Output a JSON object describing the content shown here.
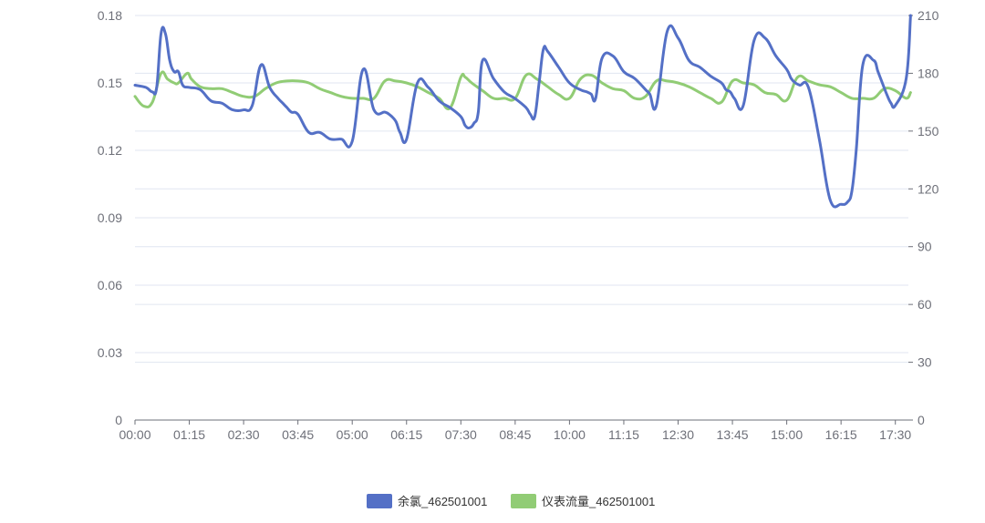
{
  "chart_data": {
    "type": "line",
    "title": "",
    "xlabel": "",
    "y_left": {
      "ticks": [
        "0",
        "0.03",
        "0.06",
        "0.09",
        "0.12",
        "0.15",
        "0.18"
      ],
      "min": 0,
      "max": 0.18
    },
    "y_right": {
      "ticks": [
        "0",
        "30",
        "60",
        "90",
        "120",
        "150",
        "180",
        "210"
      ],
      "min": 0,
      "max": 210
    },
    "x_ticks": [
      "00:00",
      "01:15",
      "02:30",
      "03:45",
      "05:00",
      "06:15",
      "07:30",
      "08:45",
      "10:00",
      "11:15",
      "12:30",
      "13:45",
      "15:00",
      "16:15",
      "17:30"
    ],
    "x_range_hours": [
      0,
      17.8
    ],
    "grid": true,
    "legend_position": "bottom-center",
    "series": [
      {
        "name": "余氯_462501001",
        "axis": "left",
        "color": "#5470c6",
        "x": [
          0.0,
          0.25,
          0.4,
          0.5,
          0.6,
          0.7,
          0.8,
          0.9,
          1.0,
          1.1,
          1.25,
          1.5,
          1.75,
          2.0,
          2.25,
          2.5,
          2.7,
          2.9,
          3.1,
          3.3,
          3.4,
          3.5,
          3.6,
          3.75,
          4.0,
          4.25,
          4.5,
          4.75,
          5.0,
          5.25,
          5.5,
          5.75,
          5.85,
          6.0,
          6.1,
          6.25,
          6.5,
          6.75,
          7.0,
          7.25,
          7.5,
          7.6,
          7.7,
          7.8,
          7.9,
          8.0,
          8.25,
          8.5,
          8.75,
          9.0,
          9.1,
          9.2,
          9.3,
          9.4,
          9.5,
          9.75,
          10.0,
          10.25,
          10.4,
          10.5,
          10.6,
          10.75,
          11.0,
          11.25,
          11.5,
          11.75,
          11.85,
          12.0,
          12.25,
          12.5,
          12.75,
          13.0,
          13.25,
          13.5,
          13.6,
          13.7,
          13.8,
          14.0,
          14.25,
          14.5,
          14.75,
          15.0,
          15.1,
          15.2,
          15.3,
          15.5,
          15.75,
          16.0,
          16.25,
          16.4,
          16.5,
          16.6,
          16.75,
          17.0,
          17.1,
          17.2,
          17.3,
          17.4,
          17.5,
          17.75,
          17.85
        ],
        "values": [
          0.149,
          0.148,
          0.146,
          0.148,
          0.172,
          0.172,
          0.16,
          0.155,
          0.155,
          0.149,
          0.148,
          0.147,
          0.142,
          0.141,
          0.138,
          0.138,
          0.14,
          0.158,
          0.148,
          0.143,
          0.141,
          0.139,
          0.137,
          0.136,
          0.128,
          0.128,
          0.125,
          0.125,
          0.124,
          0.156,
          0.138,
          0.137,
          0.136,
          0.133,
          0.128,
          0.125,
          0.15,
          0.148,
          0.142,
          0.139,
          0.135,
          0.131,
          0.13,
          0.132,
          0.137,
          0.16,
          0.152,
          0.146,
          0.143,
          0.139,
          0.136,
          0.135,
          0.15,
          0.165,
          0.164,
          0.157,
          0.15,
          0.147,
          0.146,
          0.145,
          0.143,
          0.161,
          0.162,
          0.155,
          0.152,
          0.147,
          0.145,
          0.14,
          0.173,
          0.17,
          0.16,
          0.157,
          0.153,
          0.15,
          0.147,
          0.146,
          0.143,
          0.14,
          0.169,
          0.17,
          0.162,
          0.156,
          0.152,
          0.15,
          0.149,
          0.148,
          0.125,
          0.098,
          0.096,
          0.097,
          0.102,
          0.12,
          0.158,
          0.16,
          0.155,
          0.15,
          0.145,
          0.141,
          0.14,
          0.152,
          0.18
        ],
        "trim_note": ""
      },
      {
        "name": "仪表流量_462501001",
        "axis": "right",
        "color": "#91cc75",
        "x": [
          0.0,
          0.2,
          0.4,
          0.6,
          0.75,
          0.9,
          1.0,
          1.2,
          1.3,
          1.5,
          1.75,
          2.0,
          2.25,
          2.5,
          2.75,
          3.0,
          3.25,
          3.5,
          3.75,
          4.0,
          4.25,
          4.5,
          4.75,
          5.0,
          5.25,
          5.5,
          5.75,
          6.0,
          6.25,
          6.5,
          6.75,
          7.0,
          7.25,
          7.5,
          7.6,
          7.75,
          8.0,
          8.25,
          8.5,
          8.75,
          9.0,
          9.25,
          9.5,
          9.75,
          10.0,
          10.25,
          10.5,
          10.75,
          11.0,
          11.25,
          11.5,
          11.75,
          12.0,
          12.25,
          12.5,
          12.75,
          13.0,
          13.25,
          13.5,
          13.75,
          14.0,
          14.25,
          14.5,
          14.75,
          15.0,
          15.25,
          15.5,
          15.75,
          16.0,
          16.25,
          16.5,
          16.75,
          17.0,
          17.25,
          17.5,
          17.75,
          17.85
        ],
        "values": [
          168,
          163,
          165,
          180,
          177,
          175,
          175,
          180,
          177,
          173,
          172,
          172,
          170,
          168,
          168,
          172,
          175,
          176,
          176,
          175,
          172,
          170,
          168,
          167,
          167,
          167,
          176,
          176,
          175,
          173,
          170,
          167,
          162,
          178,
          178,
          175,
          171,
          167,
          167,
          167,
          179,
          177,
          173,
          169,
          167,
          177,
          179,
          175,
          172,
          171,
          167,
          168,
          176,
          176,
          175,
          173,
          170,
          167,
          165,
          176,
          175,
          174,
          170,
          169,
          166,
          178,
          176,
          174,
          173,
          170,
          167,
          167,
          167,
          172,
          171,
          167,
          170
        ]
      }
    ]
  }
}
